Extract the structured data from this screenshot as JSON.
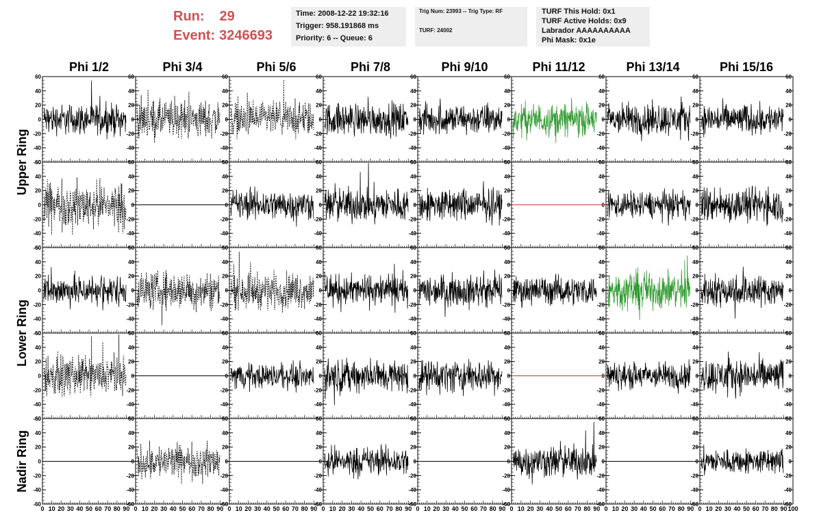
{
  "header": {
    "run_label": "Run:",
    "run_value": "29",
    "event_label": "Event:",
    "event_value": "3246693",
    "box1": [
      "Time: 2008-12-22 19:32:16",
      "Trigger: 958.191868 ms",
      "Priority: 6 -- Queue: 6"
    ],
    "box2": [
      "Trig Num: 23993 -- Trig Type: RF",
      "TURF: 24002"
    ],
    "box3": [
      "TURF This Hold: 0x1",
      "TURF Active Holds: 0x9",
      "Labrador AAAAAAAAAA",
      "Phi Mask: 0x1e"
    ]
  },
  "columns": [
    "Phi 1/2",
    "Phi 3/4",
    "Phi 5/6",
    "Phi 7/8",
    "Phi 9/10",
    "Phi 11/12",
    "Phi 13/14",
    "Phi 15/16"
  ],
  "rings": [
    "Upper Ring",
    "Lower Ring",
    "Nadir Ring"
  ],
  "colors": {
    "trace": "#000000",
    "green_trace": "#2e9a2e",
    "dead_line": "#c0392b",
    "header_red": "#d05050",
    "box_bg": "#eeeeee"
  },
  "chart_data": {
    "type": "line",
    "ylim": [
      -60,
      60
    ],
    "xlim": [
      0,
      100
    ],
    "y_ticks": [
      "60",
      "40",
      "20",
      "0",
      "-20",
      "-40",
      "-60"
    ],
    "x_tick_labels": [
      "0",
      "10",
      "20",
      "30",
      "40",
      "50",
      "60",
      "70",
      "80",
      "90",
      "100"
    ],
    "grid": false,
    "panels": [
      {
        "row": 0,
        "col": 0,
        "style": "solid",
        "amp": 16,
        "color": "black"
      },
      {
        "row": 0,
        "col": 1,
        "style": "dashed",
        "amp": 20,
        "color": "black"
      },
      {
        "row": 0,
        "col": 2,
        "style": "dashed",
        "amp": 18,
        "color": "black"
      },
      {
        "row": 0,
        "col": 3,
        "style": "solid",
        "amp": 17,
        "color": "black"
      },
      {
        "row": 0,
        "col": 4,
        "style": "solid",
        "amp": 16,
        "color": "black"
      },
      {
        "row": 0,
        "col": 5,
        "style": "solid",
        "amp": 17,
        "color": "green"
      },
      {
        "row": 0,
        "col": 6,
        "style": "solid",
        "amp": 17,
        "color": "black"
      },
      {
        "row": 0,
        "col": 7,
        "style": "solid",
        "amp": 16,
        "color": "black"
      },
      {
        "row": 1,
        "col": 0,
        "style": "dashed",
        "amp": 24,
        "color": "black"
      },
      {
        "row": 1,
        "col": 1,
        "style": "flat",
        "amp": 0,
        "color": "black"
      },
      {
        "row": 1,
        "col": 2,
        "style": "solid",
        "amp": 16,
        "color": "black"
      },
      {
        "row": 1,
        "col": 3,
        "style": "solid",
        "amp": 18,
        "color": "black"
      },
      {
        "row": 1,
        "col": 4,
        "style": "solid",
        "amp": 17,
        "color": "black"
      },
      {
        "row": 1,
        "col": 5,
        "style": "flat",
        "amp": 0,
        "color": "red"
      },
      {
        "row": 1,
        "col": 6,
        "style": "solid",
        "amp": 14,
        "color": "black"
      },
      {
        "row": 1,
        "col": 7,
        "style": "solid",
        "amp": 18,
        "color": "black"
      },
      {
        "row": 2,
        "col": 0,
        "style": "solid",
        "amp": 16,
        "color": "black"
      },
      {
        "row": 2,
        "col": 1,
        "style": "dashed",
        "amp": 20,
        "color": "black"
      },
      {
        "row": 2,
        "col": 2,
        "style": "dashed",
        "amp": 19,
        "color": "black"
      },
      {
        "row": 2,
        "col": 3,
        "style": "solid",
        "amp": 16,
        "color": "black"
      },
      {
        "row": 2,
        "col": 4,
        "style": "solid",
        "amp": 16,
        "color": "black"
      },
      {
        "row": 2,
        "col": 5,
        "style": "solid",
        "amp": 15,
        "color": "black"
      },
      {
        "row": 2,
        "col": 6,
        "style": "solid",
        "amp": 20,
        "color": "green"
      },
      {
        "row": 2,
        "col": 7,
        "style": "solid",
        "amp": 17,
        "color": "black"
      },
      {
        "row": 3,
        "col": 0,
        "style": "dashed",
        "amp": 20,
        "color": "black"
      },
      {
        "row": 3,
        "col": 1,
        "style": "flat",
        "amp": 0,
        "color": "black"
      },
      {
        "row": 3,
        "col": 2,
        "style": "solid",
        "amp": 13,
        "color": "black"
      },
      {
        "row": 3,
        "col": 3,
        "style": "solid",
        "amp": 17,
        "color": "black"
      },
      {
        "row": 3,
        "col": 4,
        "style": "solid",
        "amp": 17,
        "color": "black"
      },
      {
        "row": 3,
        "col": 5,
        "style": "flat",
        "amp": 0,
        "color": "red"
      },
      {
        "row": 3,
        "col": 6,
        "style": "solid",
        "amp": 14,
        "color": "black"
      },
      {
        "row": 3,
        "col": 7,
        "style": "solid",
        "amp": 18,
        "color": "black"
      },
      {
        "row": 4,
        "col": 0,
        "style": "flat",
        "amp": 0,
        "color": "black"
      },
      {
        "row": 4,
        "col": 1,
        "style": "dashed",
        "amp": 18,
        "color": "black"
      },
      {
        "row": 4,
        "col": 2,
        "style": "flat",
        "amp": 0,
        "color": "black"
      },
      {
        "row": 4,
        "col": 3,
        "style": "solid",
        "amp": 15,
        "color": "black"
      },
      {
        "row": 4,
        "col": 4,
        "style": "flat",
        "amp": 0,
        "color": "black"
      },
      {
        "row": 4,
        "col": 5,
        "style": "solid",
        "amp": 17,
        "color": "black"
      },
      {
        "row": 4,
        "col": 6,
        "style": "flat",
        "amp": 0,
        "color": "black"
      },
      {
        "row": 4,
        "col": 7,
        "style": "solid",
        "amp": 13,
        "color": "black"
      }
    ]
  }
}
